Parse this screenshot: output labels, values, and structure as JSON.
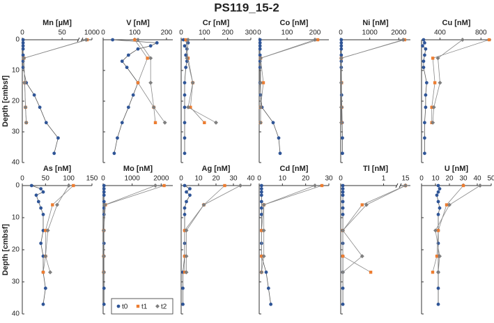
{
  "title": "PS119_15-2",
  "ylabel": "Depth [cmbsf]",
  "ylim": [
    0,
    40
  ],
  "yticks": [
    0,
    10,
    20,
    30,
    40
  ],
  "depths_t0": [
    0,
    1,
    2,
    3,
    5,
    7,
    9,
    14,
    18,
    22,
    27,
    32,
    37
  ],
  "depths_t": [
    0,
    6,
    14,
    22,
    27
  ],
  "series_names": [
    "t0",
    "t1",
    "t2"
  ],
  "series_colors": [
    "#2f5597",
    "#ed7d31",
    "#7f7f7f"
  ],
  "chart_data": [
    {
      "type": "profile",
      "title": "Mn [µM]",
      "xlim": [
        0,
        1000
      ],
      "xbreak": [
        70,
        900
      ],
      "xticks": [
        0,
        50,
        1000
      ],
      "values": [
        [
          1,
          1,
          1,
          1,
          1,
          1,
          1,
          5,
          15,
          22,
          30,
          45,
          40
        ],
        [
          950,
          2,
          3,
          4,
          5
        ],
        [
          940,
          2,
          3,
          4,
          5
        ]
      ]
    },
    {
      "type": "profile",
      "title": "V [nM]",
      "xlim": [
        0,
        220
      ],
      "xticks": [
        0,
        100,
        200
      ],
      "values": [
        [
          30,
          170,
          150,
          110,
          80,
          60,
          75,
          110,
          95,
          80,
          60,
          45,
          35
        ],
        [
          100,
          140,
          110,
          160,
          165
        ],
        [
          110,
          150,
          150,
          160,
          195
        ]
      ]
    },
    {
      "type": "profile",
      "title": "Cr [nM]",
      "xlim": [
        0,
        300
      ],
      "xticks": [
        0,
        100,
        200,
        300
      ],
      "values": [
        [
          10,
          30,
          15,
          25,
          20,
          25,
          20,
          15,
          15,
          15,
          15,
          15,
          15
        ],
        [
          20,
          30,
          50,
          40,
          100
        ],
        [
          30,
          25,
          50,
          30,
          150
        ]
      ]
    },
    {
      "type": "profile",
      "title": "Co [nM]",
      "xlim": [
        0,
        250
      ],
      "xticks": [
        0,
        100,
        200
      ],
      "values": [
        [
          3,
          3,
          3,
          3,
          3,
          3,
          3,
          3,
          5,
          10,
          50,
          70,
          75
        ],
        [
          210,
          5,
          15,
          5,
          5
        ],
        [
          200,
          5,
          5,
          5,
          5
        ]
      ]
    },
    {
      "type": "profile",
      "title": "Ni [nM]",
      "xlim": [
        0,
        2400
      ],
      "xticks": [
        0,
        1000,
        2000
      ],
      "values": [
        [
          20,
          20,
          20,
          20,
          20,
          20,
          20,
          20,
          30,
          40,
          50,
          60,
          60
        ],
        [
          2200,
          20,
          30,
          30,
          30
        ],
        [
          2150,
          20,
          20,
          20,
          20
        ]
      ]
    },
    {
      "type": "profile",
      "title": "Cu [nM]",
      "xlim": [
        220,
        900
      ],
      "xticks": [
        400,
        800
      ],
      "values": [
        [
          240,
          250,
          230,
          260,
          250,
          240,
          240,
          270,
          260,
          260,
          250,
          250,
          250
        ],
        [
          880,
          330,
          350,
          320,
          320
        ],
        [
          620,
          380,
          400,
          340,
          330
        ]
      ]
    },
    {
      "type": "profile",
      "title": "As [nM]",
      "xlim": [
        0,
        150
      ],
      "xticks": [
        0,
        50,
        100,
        150
      ],
      "values": [
        [
          20,
          40,
          45,
          30,
          35,
          40,
          45,
          45,
          40,
          45,
          45,
          50,
          45
        ],
        [
          110,
          65,
          50,
          50,
          45
        ],
        [
          100,
          75,
          55,
          50,
          60
        ]
      ]
    },
    {
      "type": "profile",
      "title": "Mo [nM]",
      "xlim": [
        0,
        2400
      ],
      "xticks": [
        0,
        1000,
        2000
      ],
      "values": [
        [
          30,
          30,
          30,
          30,
          30,
          30,
          30,
          30,
          30,
          30,
          30,
          30,
          30
        ],
        [
          2100,
          80,
          20,
          20,
          20
        ],
        [
          1800,
          60,
          20,
          20,
          20
        ]
      ]
    },
    {
      "type": "profile",
      "title": "Ag [nM]",
      "xlim": [
        0,
        40
      ],
      "xticks": [
        0,
        10,
        20,
        30,
        40
      ],
      "values": [
        [
          2,
          5,
          3,
          5,
          3,
          2,
          2,
          2,
          2,
          2,
          1,
          1,
          1
        ],
        [
          25,
          13,
          2,
          2,
          2
        ],
        [
          34,
          13,
          3,
          3,
          3
        ]
      ]
    },
    {
      "type": "profile",
      "title": "Cd [nM]",
      "xlim": [
        0,
        30
      ],
      "xticks": [
        0,
        10,
        20,
        30
      ],
      "values": [
        [
          1,
          1,
          1,
          1,
          1,
          1,
          1,
          1,
          1,
          1,
          3,
          4,
          5
        ],
        [
          27,
          2,
          1,
          1,
          1
        ],
        [
          24,
          2,
          2,
          2,
          1
        ]
      ]
    },
    {
      "type": "profile",
      "title": "Tl [nM]",
      "xlim": [
        0,
        16
      ],
      "xbreak": [
        1.3,
        14
      ],
      "xticks": [
        0,
        1,
        15
      ],
      "values": [
        [
          0.05,
          0.05,
          0.05,
          0.05,
          0.05,
          0.05,
          0.05,
          0.05,
          0.05,
          0.05,
          0.05,
          0.05,
          0.05
        ],
        [
          15,
          0.5,
          0.05,
          0.05,
          0.7
        ],
        [
          15,
          0.6,
          0.05,
          0.5,
          0.05
        ]
      ]
    },
    {
      "type": "profile",
      "title": "U [nM]",
      "xlim": [
        0,
        50
      ],
      "xticks": [
        0,
        10,
        20,
        30,
        40,
        50
      ],
      "values": [
        [
          12,
          13,
          12,
          11,
          12,
          13,
          12,
          12,
          12,
          12,
          12,
          12,
          12
        ],
        [
          30,
          18,
          12,
          11,
          8
        ],
        [
          42,
          20,
          10,
          13,
          12
        ]
      ]
    }
  ]
}
